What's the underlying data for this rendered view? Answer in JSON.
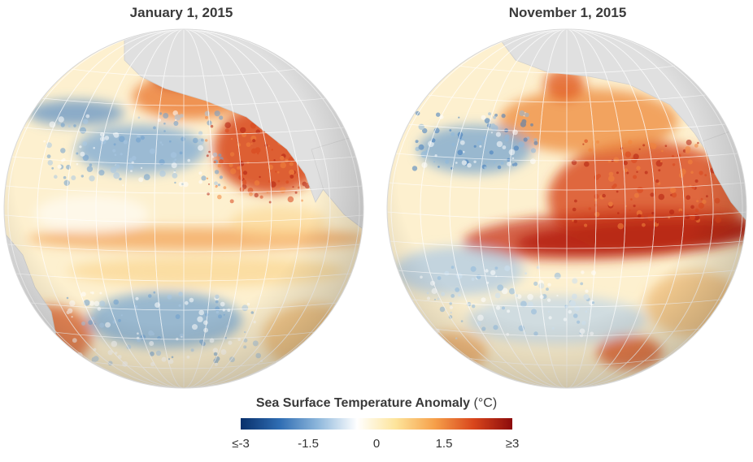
{
  "panels": [
    {
      "title": "January 1, 2015"
    },
    {
      "title": "November 1, 2015"
    }
  ],
  "legend": {
    "title": "Sea Surface Temperature Anomaly",
    "unit": "(°C)",
    "ticks": [
      "≤-3",
      "-1.5",
      "0",
      "1.5",
      "≥3"
    ],
    "range": [
      -3,
      3
    ],
    "colors": [
      "#08306b",
      "#2f6db3",
      "#8fb8dc",
      "#ffffff",
      "#fde49a",
      "#f6a04a",
      "#d9461c",
      "#8c0b0b"
    ]
  }
}
